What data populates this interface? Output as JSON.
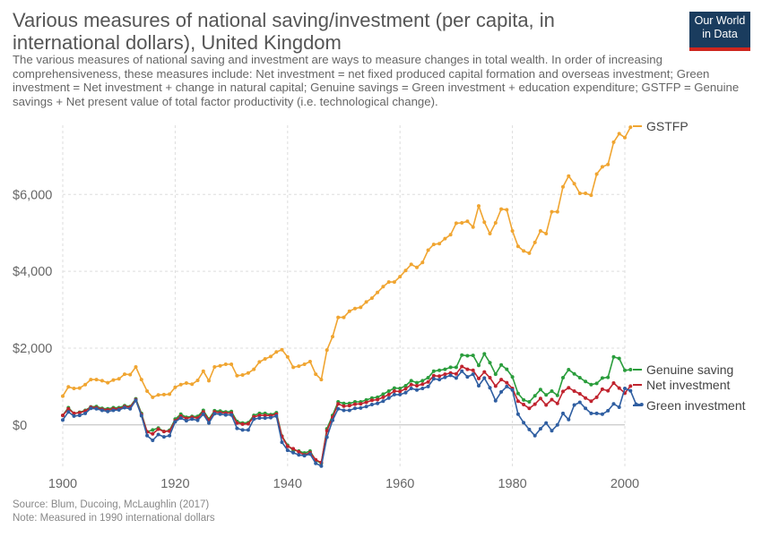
{
  "chart_data": {
    "type": "line",
    "title": "Various measures of national saving/investment (per capita, in international dollars), United Kingdom",
    "subtitle": "The various measures of national saving and investment are ways to measure changes in total wealth. In order of increasing comprehensiveness, these measures include: Net investment = net fixed produced capital formation and overseas investment; Green investment = Net investment + change in natural capital; Genuine savings = Green investment + education expenditure; GSTFP = Genuine savings + Net present value of total factor productivity (i.e. technological change).",
    "source": "Source: Blum, Ducoing, McLaughlin (2017)",
    "note": "Note: Measured in 1990 international dollars",
    "logo": [
      "Our World",
      "in Data"
    ],
    "x_ticks": [
      "1900",
      "1920",
      "1940",
      "1960",
      "1980",
      "2000"
    ],
    "y_ticks": [
      "$0",
      "$2,000",
      "$4,000",
      "$6,000"
    ],
    "xlim": [
      1900,
      2000
    ],
    "ylim": [
      -1100,
      7800
    ],
    "grid": true,
    "legend": "right",
    "series": [
      {
        "name": "GSTFP",
        "color": "#f0a531",
        "x0": 1900,
        "values": [
          750,
          990,
          950,
          960,
          1050,
          1180,
          1180,
          1150,
          1100,
          1170,
          1200,
          1320,
          1310,
          1510,
          1180,
          880,
          720,
          780,
          790,
          800,
          980,
          1050,
          1090,
          1060,
          1160,
          1400,
          1150,
          1510,
          1540,
          1580,
          1580,
          1280,
          1300,
          1350,
          1450,
          1640,
          1720,
          1780,
          1900,
          1960,
          1770,
          1500,
          1530,
          1580,
          1650,
          1320,
          1180,
          1950,
          2300,
          2800,
          2800,
          2960,
          3030,
          3060,
          3200,
          3300,
          3450,
          3600,
          3720,
          3720,
          3860,
          4020,
          4180,
          4100,
          4230,
          4550,
          4700,
          4720,
          4850,
          4950,
          5250,
          5260,
          5300,
          5150,
          5700,
          5280,
          4980,
          5260,
          5620,
          5600,
          5050,
          4650,
          4530,
          4470,
          4750,
          5050,
          4980,
          5550,
          5550,
          6200,
          6480,
          6280,
          6030,
          6030,
          5980,
          6530,
          6720,
          6780,
          7360,
          7580,
          7480,
          7750
        ]
      },
      {
        "name": "Genuine saving",
        "color": "#2a9d3c",
        "x0": 1900,
        "values": [
          250,
          450,
          300,
          330,
          380,
          470,
          480,
          430,
          420,
          450,
          450,
          500,
          480,
          680,
          300,
          -180,
          -130,
          -80,
          -170,
          -140,
          150,
          280,
          200,
          220,
          220,
          380,
          150,
          370,
          360,
          340,
          350,
          90,
          50,
          60,
          250,
          300,
          300,
          270,
          320,
          -290,
          -530,
          -660,
          -680,
          -730,
          -680,
          -920,
          -1000,
          -100,
          250,
          600,
          560,
          560,
          600,
          600,
          650,
          700,
          720,
          800,
          880,
          960,
          950,
          1020,
          1150,
          1100,
          1150,
          1230,
          1400,
          1420,
          1450,
          1500,
          1500,
          1820,
          1800,
          1810,
          1550,
          1850,
          1620,
          1320,
          1560,
          1450,
          1250,
          820,
          650,
          600,
          760,
          920,
          780,
          880,
          770,
          1230,
          1440,
          1330,
          1230,
          1130,
          1050,
          1080,
          1220,
          1240,
          1770,
          1730,
          1420,
          1440
        ]
      },
      {
        "name": "Net investment",
        "color": "#c0232e",
        "x0": 1900,
        "values": [
          250,
          420,
          300,
          320,
          360,
          460,
          450,
          410,
          390,
          420,
          420,
          480,
          460,
          660,
          270,
          -180,
          -230,
          -110,
          -170,
          -160,
          110,
          230,
          170,
          200,
          180,
          340,
          120,
          340,
          320,
          310,
          310,
          50,
          20,
          30,
          210,
          250,
          250,
          240,
          280,
          -300,
          -560,
          -620,
          -700,
          -780,
          -720,
          -910,
          -980,
          -150,
          200,
          550,
          490,
          500,
          540,
          550,
          590,
          640,
          660,
          720,
          790,
          880,
          870,
          940,
          1050,
          1020,
          1060,
          1120,
          1280,
          1270,
          1320,
          1350,
          1330,
          1520,
          1450,
          1420,
          1210,
          1380,
          1230,
          1010,
          1180,
          1100,
          950,
          620,
          530,
          430,
          540,
          690,
          520,
          660,
          560,
          870,
          970,
          880,
          810,
          700,
          620,
          720,
          930,
          890,
          1090,
          960,
          830,
          1010
        ]
      },
      {
        "name": "Green investment",
        "color": "#2f5ea1",
        "x0": 1900,
        "values": [
          130,
          340,
          230,
          250,
          300,
          430,
          420,
          380,
          350,
          380,
          390,
          450,
          420,
          640,
          240,
          -280,
          -400,
          -250,
          -310,
          -280,
          80,
          180,
          110,
          150,
          120,
          280,
          50,
          290,
          280,
          260,
          260,
          -90,
          -130,
          -130,
          150,
          180,
          180,
          190,
          230,
          -450,
          -660,
          -720,
          -780,
          -800,
          -760,
          -1000,
          -1070,
          -320,
          120,
          420,
          380,
          380,
          430,
          440,
          480,
          530,
          560,
          620,
          700,
          790,
          790,
          840,
          950,
          910,
          950,
          1000,
          1200,
          1180,
          1240,
          1290,
          1220,
          1400,
          1250,
          1320,
          1020,
          1220,
          970,
          630,
          860,
          1000,
          910,
          280,
          60,
          -120,
          -280,
          -100,
          50,
          -150,
          0,
          300,
          140,
          520,
          590,
          430,
          300,
          300,
          280,
          370,
          550,
          460,
          950,
          890,
          540,
          530
        ]
      }
    ]
  }
}
